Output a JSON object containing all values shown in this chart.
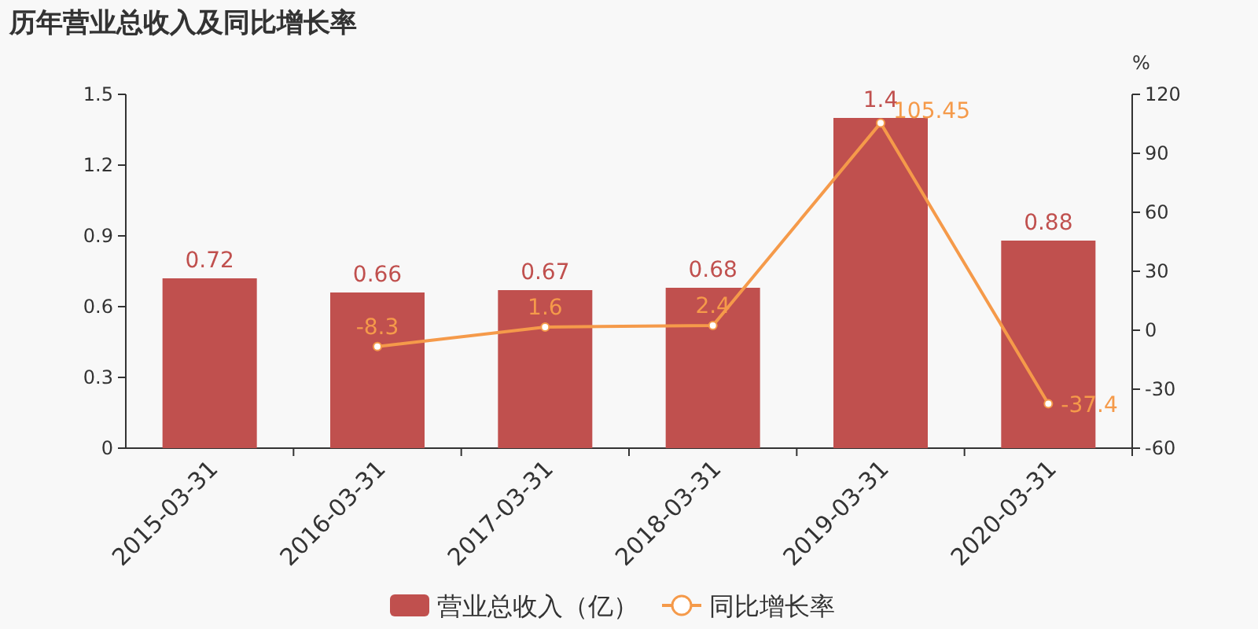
{
  "chart_data": {
    "type": "bar",
    "title": "历年营业总收入及同比增长率",
    "categories": [
      "2015-03-31",
      "2016-03-31",
      "2017-03-31",
      "2018-03-31",
      "2019-03-31",
      "2020-03-31"
    ],
    "series": [
      {
        "name": "营业总收入（亿）",
        "color": "#c0504e",
        "values": [
          0.72,
          0.66,
          0.67,
          0.68,
          1.4,
          0.88
        ]
      },
      {
        "name": "同比增长率",
        "type": "line",
        "axis": "y2",
        "color": "#f59a4a",
        "values": [
          null,
          -8.3,
          1.6,
          2.4,
          105.45,
          -37.4
        ]
      }
    ],
    "ylim": [
      0,
      1.5
    ],
    "yticks": [
      0,
      0.3,
      0.6,
      0.9,
      1.2,
      1.5
    ],
    "y2lim": [
      -60,
      120
    ],
    "y2ticks": [
      -60,
      -30,
      0,
      30,
      60,
      90,
      120
    ],
    "y2label": "%",
    "data_labels": true,
    "legend": "bottom",
    "marker": "circle"
  }
}
